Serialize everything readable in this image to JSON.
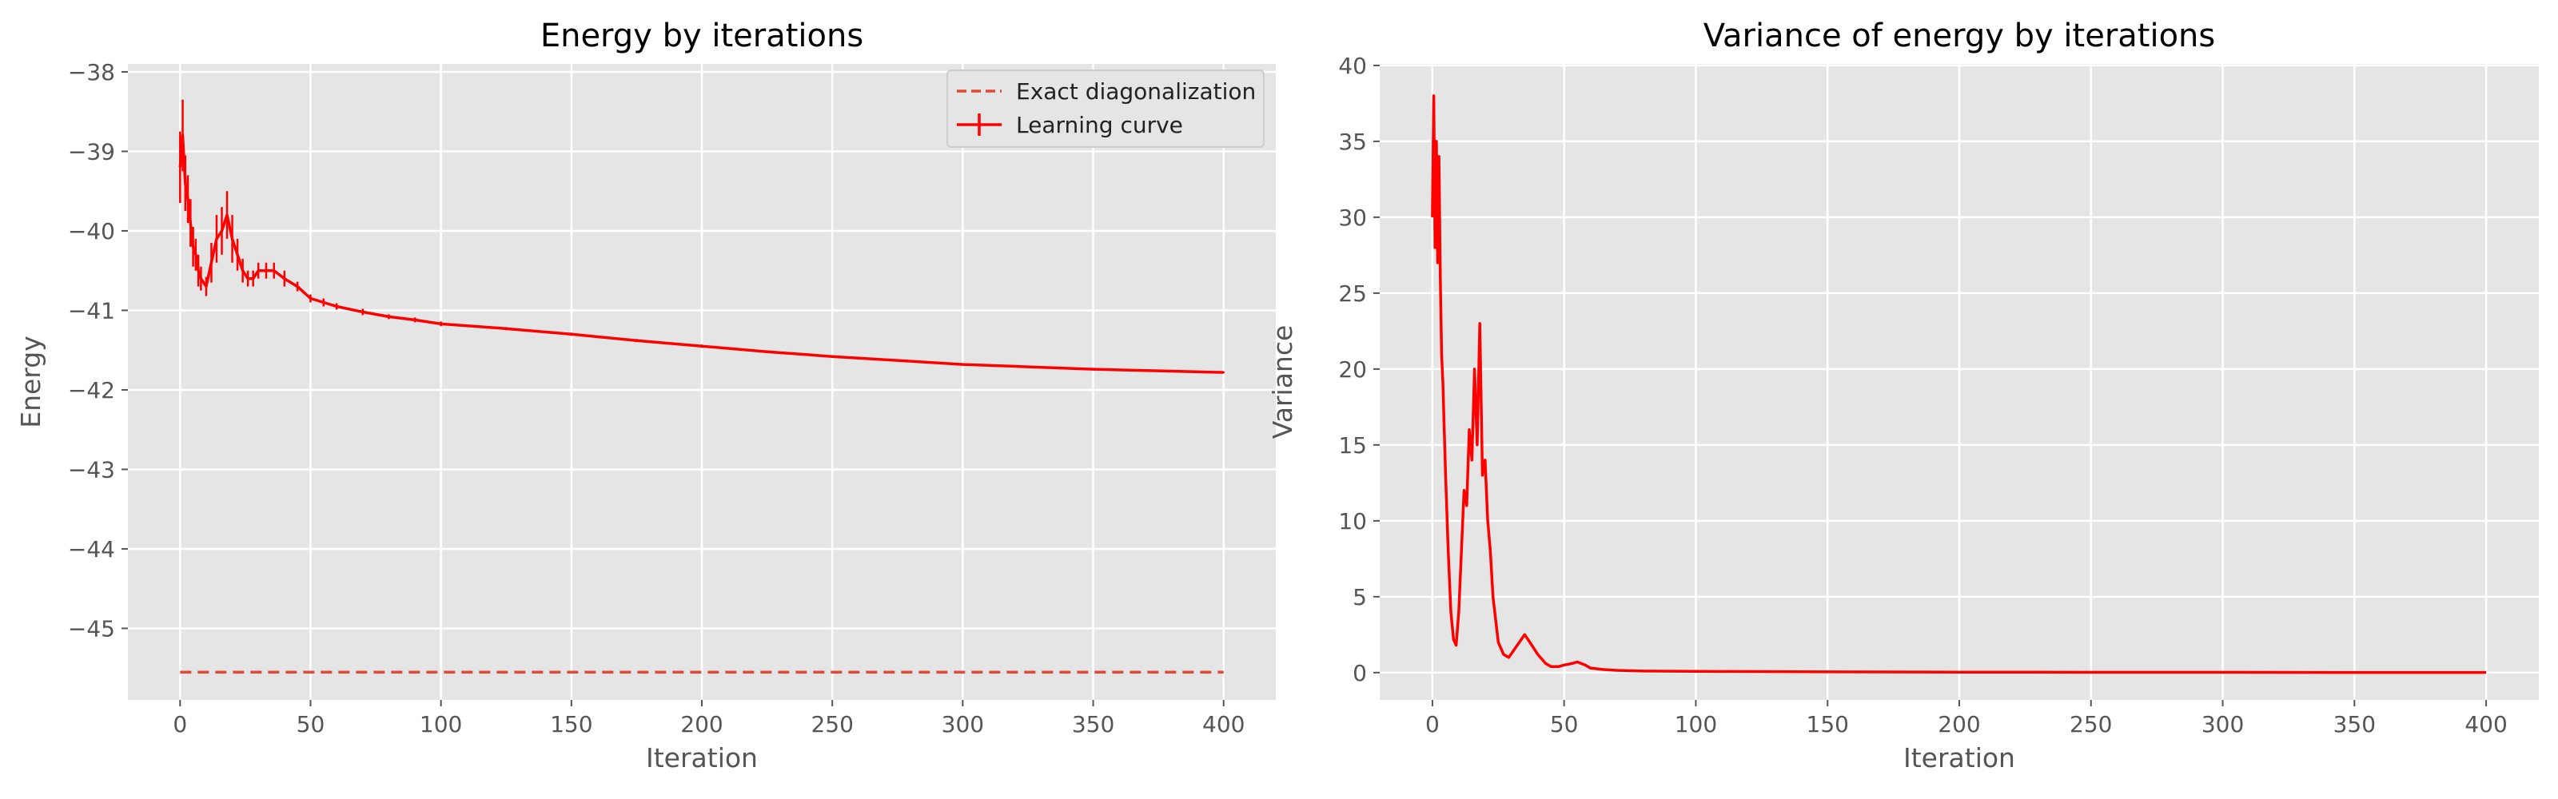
{
  "chart_data": [
    {
      "type": "line",
      "title": "Energy by iterations",
      "xlabel": "Iteration",
      "ylabel": "Energy",
      "xlim": [
        -20,
        420
      ],
      "ylim": [
        -45.9,
        -37.9
      ],
      "xticks": [
        0,
        50,
        100,
        150,
        200,
        250,
        300,
        350,
        400
      ],
      "yticks": [
        -45,
        -44,
        -43,
        -42,
        -41,
        -40,
        -39,
        -38
      ],
      "xtick_labels": [
        "0",
        "50",
        "100",
        "150",
        "200",
        "250",
        "300",
        "350",
        "400"
      ],
      "ytick_labels": [
        "−45",
        "−44",
        "−43",
        "−42",
        "−41",
        "−40",
        "−39",
        "−38"
      ],
      "grid": true,
      "legend": {
        "position": "top-right",
        "entries": [
          "Exact diagonalization",
          "Learning curve"
        ]
      },
      "series": [
        {
          "name": "Exact diagonalization",
          "style": "dashed",
          "color": "#e24a33",
          "x": [
            0,
            400
          ],
          "y": [
            -45.55,
            -45.55
          ]
        },
        {
          "name": "Learning curve",
          "style": "solid-errorbar",
          "color": "#ff0000",
          "x": [
            0,
            1,
            2,
            3,
            4,
            5,
            6,
            7,
            8,
            10,
            12,
            14,
            16,
            18,
            20,
            22,
            24,
            26,
            28,
            30,
            33,
            36,
            40,
            45,
            50,
            55,
            60,
            70,
            80,
            90,
            100,
            125,
            150,
            175,
            200,
            225,
            250,
            275,
            300,
            325,
            350,
            375,
            400
          ],
          "y": [
            -39.2,
            -38.8,
            -39.4,
            -39.6,
            -39.9,
            -40.2,
            -40.3,
            -40.5,
            -40.6,
            -40.7,
            -40.4,
            -40.1,
            -40.0,
            -39.8,
            -40.1,
            -40.3,
            -40.5,
            -40.6,
            -40.6,
            -40.5,
            -40.5,
            -40.5,
            -40.6,
            -40.7,
            -40.85,
            -40.9,
            -40.95,
            -41.02,
            -41.08,
            -41.12,
            -41.17,
            -41.23,
            -41.3,
            -41.38,
            -41.45,
            -41.52,
            -41.58,
            -41.63,
            -41.68,
            -41.71,
            -41.74,
            -41.76,
            -41.78
          ],
          "yerr": [
            0.45,
            0.45,
            0.35,
            0.3,
            0.3,
            0.25,
            0.2,
            0.2,
            0.15,
            0.12,
            0.25,
            0.3,
            0.3,
            0.3,
            0.3,
            0.2,
            0.15,
            0.1,
            0.1,
            0.1,
            0.1,
            0.1,
            0.1,
            0.06,
            0.05,
            0.05,
            0.04,
            0.04,
            0.03,
            0.03,
            0.03,
            0.02,
            0.02,
            0.02,
            0.02,
            0.015,
            0.015,
            0.015,
            0.01,
            0.01,
            0.01,
            0.01,
            0.01
          ]
        }
      ]
    },
    {
      "type": "line",
      "title": "Variance of energy by iterations",
      "xlabel": "Iteration",
      "ylabel": "Variance",
      "xlim": [
        -20,
        420
      ],
      "ylim": [
        -1.8,
        40.1
      ],
      "xticks": [
        0,
        50,
        100,
        150,
        200,
        250,
        300,
        350,
        400
      ],
      "yticks": [
        0,
        5,
        10,
        15,
        20,
        25,
        30,
        35,
        40
      ],
      "xtick_labels": [
        "0",
        "50",
        "100",
        "150",
        "200",
        "250",
        "300",
        "350",
        "400"
      ],
      "ytick_labels": [
        "0",
        "5",
        "10",
        "15",
        "20",
        "25",
        "30",
        "35",
        "40"
      ],
      "grid": true,
      "series": [
        {
          "style": "solid",
          "color": "#ff0000",
          "x": [
            0,
            0.5,
            1,
            1.5,
            2,
            2.5,
            3,
            3.5,
            4,
            4.5,
            5,
            6,
            7,
            8,
            9,
            10,
            11,
            12,
            13,
            14,
            15,
            16,
            17,
            18,
            19,
            20,
            21,
            22,
            23,
            24,
            25,
            27,
            29,
            31,
            33,
            35,
            37,
            40,
            43,
            45,
            48,
            50,
            53,
            55,
            58,
            60,
            65,
            70,
            80,
            100,
            150,
            200,
            250,
            300,
            350,
            400
          ],
          "y": [
            30,
            38,
            28,
            35,
            27,
            34,
            26,
            21,
            19,
            16,
            13,
            8,
            4,
            2.2,
            1.8,
            4,
            8,
            12,
            11,
            16,
            14,
            20,
            15,
            23,
            13,
            14,
            10,
            8,
            5,
            3.5,
            2,
            1.2,
            1.0,
            1.5,
            2.0,
            2.5,
            2.0,
            1.2,
            0.6,
            0.4,
            0.4,
            0.5,
            0.6,
            0.7,
            0.5,
            0.3,
            0.2,
            0.15,
            0.1,
            0.08,
            0.05,
            0.03,
            0.02,
            0.02,
            0.01,
            0.01
          ]
        }
      ]
    }
  ]
}
